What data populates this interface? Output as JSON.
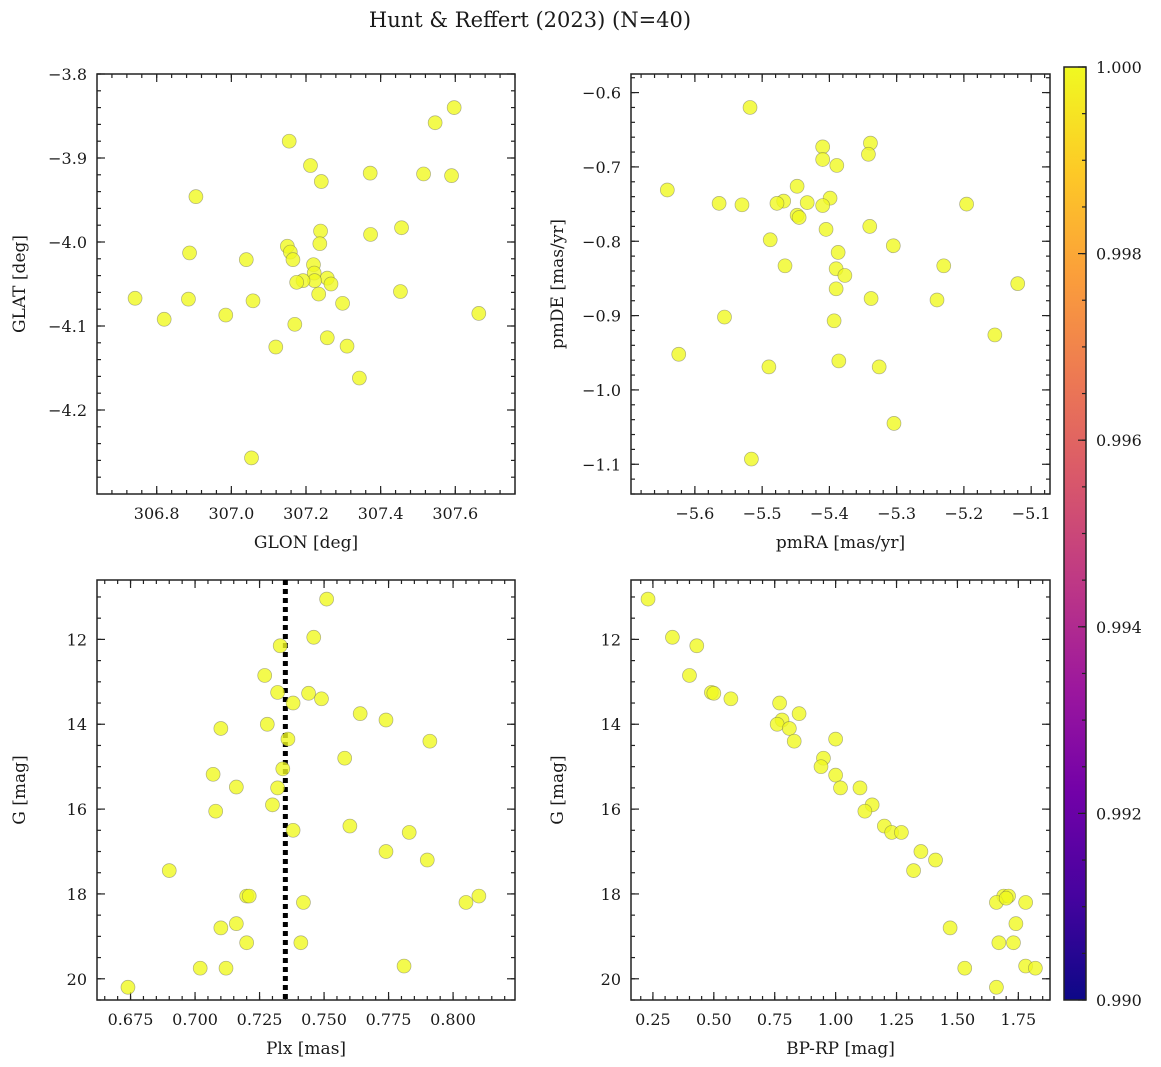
{
  "figure_title": "Hunt & Reffert (2023) (N=40)",
  "point_color": "#f0f921",
  "chart_data": [
    {
      "type": "scatter",
      "xlabel": "GLON [deg]",
      "ylabel": "GLAT [deg]",
      "xlim": [
        306.64,
        307.76
      ],
      "ylim": [
        -4.3,
        -3.8
      ],
      "y_inverted": false,
      "xticks": [
        306.8,
        307.0,
        307.2,
        307.4,
        307.6
      ],
      "xtick_labels": [
        "306.8",
        "307.0",
        "307.2",
        "307.4",
        "307.6"
      ],
      "yticks": [
        -3.8,
        -3.9,
        -4.0,
        -4.1,
        -4.2
      ],
      "ytick_labels": [
        "−3.8",
        "−3.9",
        "−4.0",
        "−4.1",
        "−4.2"
      ],
      "points": [
        {
          "x": 307.597,
          "y": -3.84
        },
        {
          "x": 307.546,
          "y": -3.858
        },
        {
          "x": 307.155,
          "y": -3.88
        },
        {
          "x": 307.212,
          "y": -3.909
        },
        {
          "x": 307.515,
          "y": -3.919
        },
        {
          "x": 307.59,
          "y": -3.921
        },
        {
          "x": 307.372,
          "y": -3.918
        },
        {
          "x": 307.241,
          "y": -3.928
        },
        {
          "x": 306.905,
          "y": -3.946
        },
        {
          "x": 307.456,
          "y": -3.983
        },
        {
          "x": 307.239,
          "y": -3.987
        },
        {
          "x": 307.373,
          "y": -3.991
        },
        {
          "x": 307.237,
          "y": -4.002
        },
        {
          "x": 307.15,
          "y": -4.005
        },
        {
          "x": 307.158,
          "y": -4.012
        },
        {
          "x": 306.888,
          "y": -4.013
        },
        {
          "x": 307.04,
          "y": -4.021
        },
        {
          "x": 307.165,
          "y": -4.021
        },
        {
          "x": 307.22,
          "y": -4.027
        },
        {
          "x": 307.222,
          "y": -4.037
        },
        {
          "x": 307.257,
          "y": -4.043
        },
        {
          "x": 307.223,
          "y": -4.046
        },
        {
          "x": 307.192,
          "y": -4.046
        },
        {
          "x": 307.175,
          "y": -4.048
        },
        {
          "x": 307.267,
          "y": -4.05
        },
        {
          "x": 307.453,
          "y": -4.059
        },
        {
          "x": 307.234,
          "y": -4.062
        },
        {
          "x": 306.885,
          "y": -4.068
        },
        {
          "x": 306.742,
          "y": -4.067
        },
        {
          "x": 307.058,
          "y": -4.07
        },
        {
          "x": 307.298,
          "y": -4.073
        },
        {
          "x": 307.663,
          "y": -4.085
        },
        {
          "x": 306.985,
          "y": -4.087
        },
        {
          "x": 306.82,
          "y": -4.092
        },
        {
          "x": 307.17,
          "y": -4.098
        },
        {
          "x": 307.257,
          "y": -4.114
        },
        {
          "x": 307.31,
          "y": -4.124
        },
        {
          "x": 307.119,
          "y": -4.125
        },
        {
          "x": 307.343,
          "y": -4.162
        },
        {
          "x": 307.054,
          "y": -4.257
        }
      ]
    },
    {
      "type": "scatter",
      "xlabel": "pmRA [mas/yr]",
      "ylabel": "pmDE [mas/yr]",
      "xlim": [
        -5.695,
        -5.072
      ],
      "ylim": [
        -1.14,
        -0.575
      ],
      "y_inverted": false,
      "xticks": [
        -5.6,
        -5.5,
        -5.4,
        -5.3,
        -5.2,
        -5.1
      ],
      "xtick_labels": [
        "−5.6",
        "−5.5",
        "−5.4",
        "−5.3",
        "−5.2",
        "−5.1"
      ],
      "yticks": [
        -0.6,
        -0.7,
        -0.8,
        -0.9,
        -1.0,
        -1.1
      ],
      "ytick_labels": [
        "−0.6",
        "−0.7",
        "−0.8",
        "−0.9",
        "−1.0",
        "−1.1"
      ],
      "points": [
        {
          "x": -5.518,
          "y": -0.62
        },
        {
          "x": -5.339,
          "y": -0.668
        },
        {
          "x": -5.41,
          "y": -0.673
        },
        {
          "x": -5.342,
          "y": -0.683
        },
        {
          "x": -5.41,
          "y": -0.69
        },
        {
          "x": -5.389,
          "y": -0.698
        },
        {
          "x": -5.448,
          "y": -0.726
        },
        {
          "x": -5.641,
          "y": -0.731
        },
        {
          "x": -5.399,
          "y": -0.742
        },
        {
          "x": -5.468,
          "y": -0.746
        },
        {
          "x": -5.433,
          "y": -0.748
        },
        {
          "x": -5.564,
          "y": -0.749
        },
        {
          "x": -5.478,
          "y": -0.749
        },
        {
          "x": -5.196,
          "y": -0.75
        },
        {
          "x": -5.53,
          "y": -0.751
        },
        {
          "x": -5.41,
          "y": -0.752
        },
        {
          "x": -5.448,
          "y": -0.765
        },
        {
          "x": -5.445,
          "y": -0.768
        },
        {
          "x": -5.34,
          "y": -0.78
        },
        {
          "x": -5.405,
          "y": -0.784
        },
        {
          "x": -5.488,
          "y": -0.798
        },
        {
          "x": -5.305,
          "y": -0.806
        },
        {
          "x": -5.387,
          "y": -0.815
        },
        {
          "x": -5.23,
          "y": -0.833
        },
        {
          "x": -5.466,
          "y": -0.833
        },
        {
          "x": -5.39,
          "y": -0.837
        },
        {
          "x": -5.377,
          "y": -0.846
        },
        {
          "x": -5.12,
          "y": -0.857
        },
        {
          "x": -5.39,
          "y": -0.864
        },
        {
          "x": -5.338,
          "y": -0.877
        },
        {
          "x": -5.24,
          "y": -0.879
        },
        {
          "x": -5.556,
          "y": -0.902
        },
        {
          "x": -5.393,
          "y": -0.907
        },
        {
          "x": -5.154,
          "y": -0.926
        },
        {
          "x": -5.624,
          "y": -0.952
        },
        {
          "x": -5.386,
          "y": -0.961
        },
        {
          "x": -5.49,
          "y": -0.969
        },
        {
          "x": -5.326,
          "y": -0.969
        },
        {
          "x": -5.304,
          "y": -1.045
        },
        {
          "x": -5.516,
          "y": -1.093
        }
      ]
    },
    {
      "type": "scatter",
      "xlabel": "Plx [mas]",
      "ylabel": "G [mag]",
      "xlim": [
        0.662,
        0.824
      ],
      "ylim": [
        10.6,
        20.5
      ],
      "y_inverted": true,
      "xticks": [
        0.675,
        0.7,
        0.725,
        0.75,
        0.775,
        0.8
      ],
      "xtick_labels": [
        "0.675",
        "0.700",
        "0.725",
        "0.750",
        "0.775",
        "0.800"
      ],
      "yticks": [
        12,
        14,
        16,
        18,
        20
      ],
      "ytick_labels": [
        "12",
        "14",
        "16",
        "18",
        "20"
      ],
      "vline": 0.735,
      "points": [
        {
          "x": 0.751,
          "y": 11.05
        },
        {
          "x": 0.746,
          "y": 11.95
        },
        {
          "x": 0.733,
          "y": 12.15
        },
        {
          "x": 0.727,
          "y": 12.85
        },
        {
          "x": 0.732,
          "y": 13.25
        },
        {
          "x": 0.744,
          "y": 13.27
        },
        {
          "x": 0.749,
          "y": 13.4
        },
        {
          "x": 0.738,
          "y": 13.5
        },
        {
          "x": 0.764,
          "y": 13.75
        },
        {
          "x": 0.774,
          "y": 13.9
        },
        {
          "x": 0.728,
          "y": 14.0
        },
        {
          "x": 0.71,
          "y": 14.1
        },
        {
          "x": 0.736,
          "y": 14.35
        },
        {
          "x": 0.791,
          "y": 14.4
        },
        {
          "x": 0.758,
          "y": 14.8
        },
        {
          "x": 0.734,
          "y": 15.05
        },
        {
          "x": 0.707,
          "y": 15.18
        },
        {
          "x": 0.716,
          "y": 15.48
        },
        {
          "x": 0.732,
          "y": 15.5
        },
        {
          "x": 0.73,
          "y": 15.9
        },
        {
          "x": 0.708,
          "y": 16.05
        },
        {
          "x": 0.76,
          "y": 16.4
        },
        {
          "x": 0.738,
          "y": 16.5
        },
        {
          "x": 0.783,
          "y": 16.55
        },
        {
          "x": 0.774,
          "y": 17.0
        },
        {
          "x": 0.79,
          "y": 17.2
        },
        {
          "x": 0.69,
          "y": 17.45
        },
        {
          "x": 0.72,
          "y": 18.05
        },
        {
          "x": 0.721,
          "y": 18.05
        },
        {
          "x": 0.81,
          "y": 18.05
        },
        {
          "x": 0.742,
          "y": 18.2
        },
        {
          "x": 0.805,
          "y": 18.2
        },
        {
          "x": 0.716,
          "y": 18.7
        },
        {
          "x": 0.71,
          "y": 18.8
        },
        {
          "x": 0.72,
          "y": 19.15
        },
        {
          "x": 0.741,
          "y": 19.15
        },
        {
          "x": 0.781,
          "y": 19.7
        },
        {
          "x": 0.712,
          "y": 19.75
        },
        {
          "x": 0.702,
          "y": 19.75
        },
        {
          "x": 0.674,
          "y": 20.2
        }
      ]
    },
    {
      "type": "scatter",
      "xlabel": "BP-RP [mag]",
      "ylabel": "G [mag]",
      "xlim": [
        0.16,
        1.88
      ],
      "ylim": [
        10.6,
        20.5
      ],
      "y_inverted": true,
      "xticks": [
        0.25,
        0.5,
        0.75,
        1.0,
        1.25,
        1.5,
        1.75
      ],
      "xtick_labels": [
        "0.25",
        "0.50",
        "0.75",
        "1.00",
        "1.25",
        "1.50",
        "1.75"
      ],
      "yticks": [
        12,
        14,
        16,
        18,
        20
      ],
      "ytick_labels": [
        "12",
        "14",
        "16",
        "18",
        "20"
      ],
      "points": [
        {
          "x": 0.23,
          "y": 11.05
        },
        {
          "x": 0.33,
          "y": 11.95
        },
        {
          "x": 0.43,
          "y": 12.15
        },
        {
          "x": 0.4,
          "y": 12.85
        },
        {
          "x": 0.49,
          "y": 13.25
        },
        {
          "x": 0.5,
          "y": 13.27
        },
        {
          "x": 0.57,
          "y": 13.4
        },
        {
          "x": 0.77,
          "y": 13.5
        },
        {
          "x": 0.85,
          "y": 13.75
        },
        {
          "x": 0.78,
          "y": 13.9
        },
        {
          "x": 0.76,
          "y": 14.0
        },
        {
          "x": 0.81,
          "y": 14.1
        },
        {
          "x": 0.83,
          "y": 14.4
        },
        {
          "x": 1.0,
          "y": 14.35
        },
        {
          "x": 0.95,
          "y": 14.8
        },
        {
          "x": 0.94,
          "y": 15.0
        },
        {
          "x": 1.0,
          "y": 15.2
        },
        {
          "x": 1.1,
          "y": 15.5
        },
        {
          "x": 1.02,
          "y": 15.5
        },
        {
          "x": 1.15,
          "y": 15.9
        },
        {
          "x": 1.12,
          "y": 16.05
        },
        {
          "x": 1.2,
          "y": 16.4
        },
        {
          "x": 1.23,
          "y": 16.55
        },
        {
          "x": 1.27,
          "y": 16.55
        },
        {
          "x": 1.35,
          "y": 17.0
        },
        {
          "x": 1.41,
          "y": 17.2
        },
        {
          "x": 1.32,
          "y": 17.45
        },
        {
          "x": 1.69,
          "y": 18.05
        },
        {
          "x": 1.71,
          "y": 18.05
        },
        {
          "x": 1.66,
          "y": 18.2
        },
        {
          "x": 1.78,
          "y": 18.2
        },
        {
          "x": 1.74,
          "y": 18.7
        },
        {
          "x": 1.47,
          "y": 18.8
        },
        {
          "x": 1.67,
          "y": 19.15
        },
        {
          "x": 1.73,
          "y": 19.15
        },
        {
          "x": 1.78,
          "y": 19.7
        },
        {
          "x": 1.82,
          "y": 19.75
        },
        {
          "x": 1.53,
          "y": 19.75
        },
        {
          "x": 1.66,
          "y": 20.2
        },
        {
          "x": 1.7,
          "y": 18.1
        }
      ]
    }
  ],
  "colorbar": {
    "min": 0.99,
    "max": 1.0,
    "ticks": [
      0.99,
      0.992,
      0.994,
      0.996,
      0.998,
      1.0
    ],
    "tick_labels": [
      "0.990",
      "0.992",
      "0.994",
      "0.996",
      "0.998",
      "1.000"
    ],
    "colormap": [
      "#0d0887",
      "#46039f",
      "#7201a8",
      "#9c179e",
      "#bd3786",
      "#d8576b",
      "#ed7953",
      "#fb9f3a",
      "#fdca26",
      "#f0f921"
    ]
  }
}
